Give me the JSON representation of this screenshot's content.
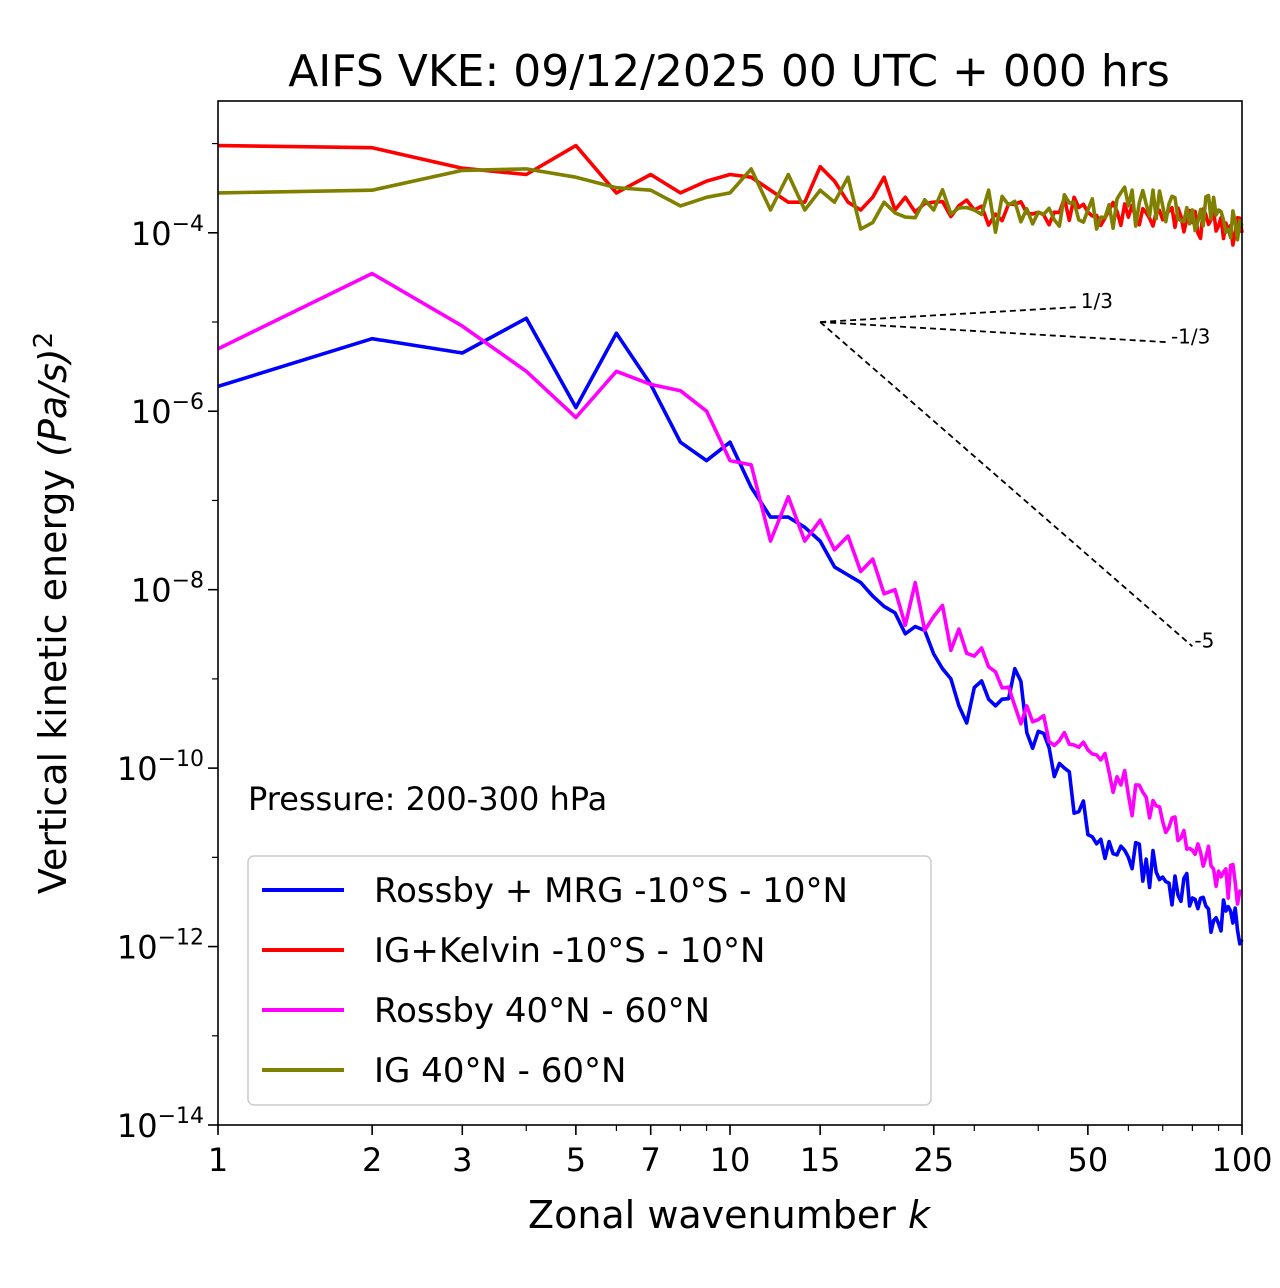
{
  "chart_data": {
    "type": "line",
    "title": "AIFS VKE: 09/12/2025 00 UTC + 000 hrs",
    "xlabel": "Zonal wavenumber",
    "xlabel_var": "k",
    "ylabel": "Vertical kinetic energy",
    "ylabel_units": "(Pa/s)",
    "ylabel_exponent": "2",
    "xscale": "log",
    "yscale": "log",
    "xlim": [
      1,
      100
    ],
    "ylim": [
      1e-14,
      0.003
    ],
    "xticks": [
      {
        "value": 1,
        "label": "1"
      },
      {
        "value": 2,
        "label": "2"
      },
      {
        "value": 3,
        "label": "3"
      },
      {
        "value": 5,
        "label": "5"
      },
      {
        "value": 7,
        "label": "7"
      },
      {
        "value": 10,
        "label": "10"
      },
      {
        "value": 15,
        "label": "15"
      },
      {
        "value": 25,
        "label": "25"
      },
      {
        "value": 50,
        "label": "50"
      },
      {
        "value": 100,
        "label": "100"
      }
    ],
    "yticks": [
      {
        "exp": -4,
        "base": "10",
        "sup": "−4"
      },
      {
        "exp": -6,
        "base": "10",
        "sup": "−6"
      },
      {
        "exp": -8,
        "base": "10",
        "sup": "−8"
      },
      {
        "exp": -10,
        "base": "10",
        "sup": "−10"
      },
      {
        "exp": -12,
        "base": "10",
        "sup": "−12"
      },
      {
        "exp": -14,
        "base": "10",
        "sup": "−14"
      }
    ],
    "annotation": "Pressure: 200-300 hPa",
    "legend_position": "lower-left",
    "reference_slopes": [
      {
        "label": "1/3",
        "slope": 0.3333,
        "k0": 15,
        "k1": 48,
        "e0": 1e-05
      },
      {
        "label": "-1/3",
        "slope": -0.3333,
        "k0": 15,
        "k1": 72,
        "e0": 1e-05
      },
      {
        "label": "-5",
        "slope": -5,
        "k0": 15,
        "k1": 80,
        "e0": 1e-05
      }
    ],
    "series": [
      {
        "name": "Rossby + MRG -10°S - 10°N",
        "color": "#0000ff",
        "anchors": [
          [
            1,
            1.9e-06
          ],
          [
            2,
            6.5e-06
          ],
          [
            3,
            4.5e-06
          ],
          [
            4,
            1.1e-05
          ],
          [
            5,
            1.1e-06
          ],
          [
            6,
            7.5e-06
          ],
          [
            7,
            2e-06
          ],
          [
            8,
            4.5e-07
          ],
          [
            9,
            2.8e-07
          ],
          [
            10,
            4.5e-07
          ],
          [
            11,
            1.4e-07
          ],
          [
            12,
            6.5e-08
          ],
          [
            13,
            6.5e-08
          ],
          [
            14,
            5e-08
          ],
          [
            15,
            3.5e-08
          ],
          [
            16,
            1.8e-08
          ],
          [
            18,
            1.2e-08
          ],
          [
            19,
            8.5e-09
          ],
          [
            20,
            6.5e-09
          ],
          [
            21,
            5.5e-09
          ],
          [
            22,
            3.2e-09
          ],
          [
            24,
            3.5e-09
          ],
          [
            25,
            1.9e-09
          ],
          [
            26,
            1.3e-09
          ],
          [
            27,
            1e-09
          ],
          [
            28,
            5e-10
          ],
          [
            29,
            3.2e-10
          ],
          [
            30,
            8e-10
          ],
          [
            31,
            9.5e-10
          ],
          [
            33,
            5e-10
          ],
          [
            35,
            6e-10
          ],
          [
            36,
            1.3e-09
          ],
          [
            38,
            2.5e-10
          ],
          [
            45,
            1e-10
          ],
          [
            50,
            1.8e-11
          ],
          [
            55,
            1.5e-11
          ],
          [
            60,
            1e-11
          ],
          [
            70,
            6e-12
          ],
          [
            80,
            3.5e-12
          ],
          [
            90,
            1.8e-12
          ],
          [
            95,
            2.5e-12
          ],
          [
            100,
            1.2e-12
          ]
        ],
        "jitter": 0.3
      },
      {
        "name": "IG+Kelvin -10°S - 10°N",
        "color": "#ff0000",
        "anchors": [
          [
            1,
            0.00095
          ],
          [
            2,
            0.0009
          ],
          [
            3,
            0.00053
          ],
          [
            4,
            0.00045
          ],
          [
            5,
            0.00095
          ],
          [
            6,
            0.00028
          ],
          [
            7,
            0.00045
          ],
          [
            8,
            0.00028
          ],
          [
            9,
            0.00038
          ],
          [
            10,
            0.00045
          ],
          [
            11,
            0.00042
          ],
          [
            12,
            0.0003
          ],
          [
            13,
            0.00022
          ],
          [
            14,
            0.00022
          ],
          [
            15,
            0.00055
          ],
          [
            16,
            0.00038
          ],
          [
            17,
            0.00022
          ],
          [
            18,
            0.00018
          ],
          [
            19,
            0.00025
          ],
          [
            20,
            0.00042
          ],
          [
            21,
            0.00018
          ],
          [
            22,
            0.00025
          ],
          [
            25,
            0.00022
          ],
          [
            30,
            0.00018
          ],
          [
            40,
            0.00017
          ],
          [
            50,
            0.00017
          ],
          [
            60,
            0.00015
          ],
          [
            70,
            0.00014
          ],
          [
            80,
            0.00013
          ],
          [
            90,
            0.00012
          ],
          [
            100,
            0.0001
          ]
        ],
        "jitter": 0.22
      },
      {
        "name": "Rossby 40°N - 60°N",
        "color": "#ff00ff",
        "anchors": [
          [
            1,
            5e-06
          ],
          [
            2,
            3.5e-05
          ],
          [
            3,
            9e-06
          ],
          [
            4,
            2.8e-06
          ],
          [
            5,
            8.5e-07
          ],
          [
            6,
            2.8e-06
          ],
          [
            7,
            2e-06
          ],
          [
            8,
            1.7e-06
          ],
          [
            9,
            1e-06
          ],
          [
            10,
            2.8e-07
          ],
          [
            11,
            2.5e-07
          ],
          [
            12,
            3.5e-08
          ],
          [
            13,
            1.1e-07
          ],
          [
            14,
            3.5e-08
          ],
          [
            15,
            6e-08
          ],
          [
            16,
            2.8e-08
          ],
          [
            17,
            4e-08
          ],
          [
            18,
            1.6e-08
          ],
          [
            19,
            2.2e-08
          ],
          [
            20,
            9e-09
          ],
          [
            21,
            1e-08
          ],
          [
            22,
            4e-09
          ],
          [
            23,
            1.2e-08
          ],
          [
            24,
            3.5e-09
          ],
          [
            25,
            5e-09
          ],
          [
            30,
            1.8e-09
          ],
          [
            33,
            1.2e-09
          ],
          [
            36,
            5e-10
          ],
          [
            40,
            3.5e-10
          ],
          [
            45,
            2.5e-10
          ],
          [
            50,
            1.6e-10
          ],
          [
            55,
            9e-11
          ],
          [
            60,
            5e-11
          ],
          [
            70,
            2.5e-11
          ],
          [
            80,
            1.2e-11
          ],
          [
            90,
            7e-12
          ],
          [
            100,
            4e-12
          ]
        ],
        "jitter": 0.28
      },
      {
        "name": "IG 40°N - 60°N",
        "color": "#808000",
        "anchors": [
          [
            1,
            0.00028
          ],
          [
            2,
            0.0003
          ],
          [
            3,
            0.0005
          ],
          [
            4,
            0.00052
          ],
          [
            5,
            0.00042
          ],
          [
            6,
            0.00032
          ],
          [
            7,
            0.0003
          ],
          [
            8,
            0.0002
          ],
          [
            9,
            0.00025
          ],
          [
            10,
            0.00028
          ],
          [
            11,
            0.00052
          ],
          [
            12,
            0.00018
          ],
          [
            13,
            0.00045
          ],
          [
            14,
            0.00018
          ],
          [
            15,
            0.0003
          ],
          [
            16,
            0.00022
          ],
          [
            17,
            0.00042
          ],
          [
            18,
            0.00011
          ],
          [
            19,
            0.00013
          ],
          [
            20,
            0.00022
          ],
          [
            22,
            0.00015
          ],
          [
            25,
            0.00018
          ],
          [
            30,
            0.00018
          ],
          [
            40,
            0.00017
          ],
          [
            50,
            0.00018
          ],
          [
            60,
            0.0002
          ],
          [
            70,
            0.0002
          ],
          [
            80,
            0.00018
          ],
          [
            90,
            0.00018
          ],
          [
            100,
            0.00012
          ]
        ],
        "jitter": 0.3
      }
    ]
  }
}
